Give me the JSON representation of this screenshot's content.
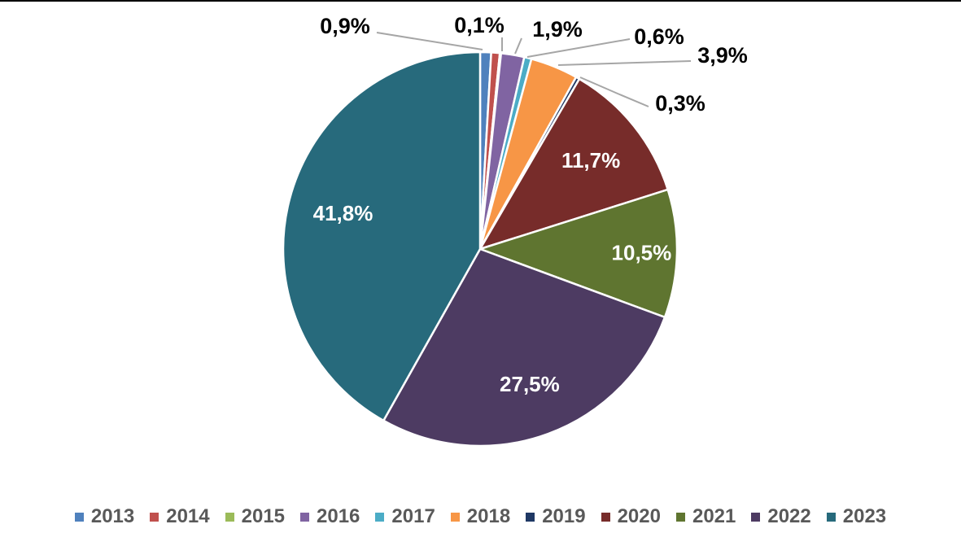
{
  "chart_data": {
    "type": "pie",
    "categories": [
      "2013",
      "2014",
      "2015",
      "2016",
      "2017",
      "2018",
      "2019",
      "2020",
      "2021",
      "2022",
      "2023"
    ],
    "values": [
      0.9,
      0.7,
      0.1,
      1.9,
      0.6,
      3.9,
      0.3,
      11.7,
      10.5,
      27.5,
      41.8
    ],
    "labels": [
      "",
      "",
      "0,1%",
      "1,9%",
      "0,6%",
      "3,9%",
      "0,3%",
      "11,7%",
      "10,5%",
      "27,5%",
      "41,8%"
    ],
    "extra_labels": [
      "0,9%"
    ],
    "colors": [
      "#4F81BD",
      "#C0504D",
      "#9BBB59",
      "#8064A2",
      "#4BACC6",
      "#F79646",
      "#1F3864",
      "#772C2A",
      "#5F7530",
      "#4D3B62",
      "#276A7C"
    ],
    "legend_position": "bottom",
    "start_angle_deg": 0,
    "direction": "clockwise"
  }
}
